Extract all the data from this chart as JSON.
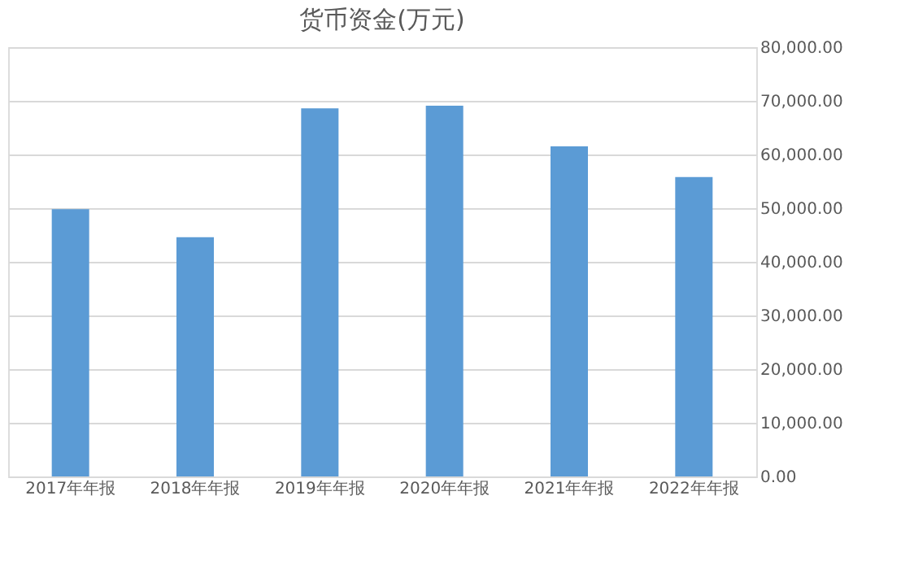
{
  "chart_data": {
    "type": "bar",
    "title": "货币资金(万元)",
    "categories": [
      "2017年年报",
      "2018年年报",
      "2019年年报",
      "2020年年报",
      "2021年年报",
      "2022年年报"
    ],
    "values": [
      49800,
      44600,
      68600,
      69100,
      61500,
      55800
    ],
    "color": "#5b9bd5",
    "ylim": [
      0,
      80000
    ],
    "yticks": [
      {
        "value": 0,
        "label": "0.00"
      },
      {
        "value": 10000,
        "label": "10,000.00"
      },
      {
        "value": 20000,
        "label": "20,000.00"
      },
      {
        "value": 30000,
        "label": "30,000.00"
      },
      {
        "value": 40000,
        "label": "40,000.00"
      },
      {
        "value": 50000,
        "label": "50,000.00"
      },
      {
        "value": 60000,
        "label": "60,000.00"
      },
      {
        "value": 70000,
        "label": "70,000.00"
      },
      {
        "value": 80000,
        "label": "80,000.00"
      }
    ],
    "grid": "y"
  }
}
